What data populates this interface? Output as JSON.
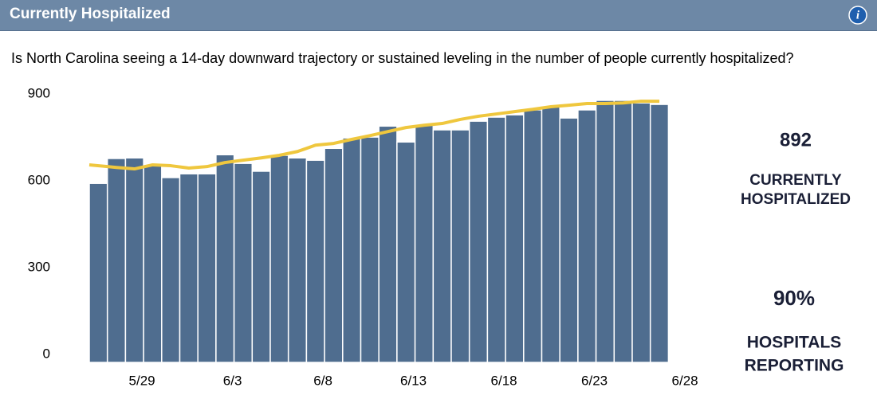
{
  "header": {
    "title": "Currently Hospitalized"
  },
  "question": "Is North Carolina seeing a 14-day downward trajectory or sustained leveling in the number of people currently hospitalized?",
  "chart_data": {
    "type": "bar",
    "categories": [
      null,
      null,
      null,
      "5/29",
      null,
      null,
      null,
      null,
      "6/3",
      null,
      null,
      null,
      null,
      "6/8",
      null,
      null,
      null,
      null,
      "6/13",
      null,
      null,
      null,
      null,
      "6/18",
      null,
      null,
      null,
      null,
      "6/23",
      null,
      null,
      null,
      null,
      "6/28"
    ],
    "series": [
      {
        "type": "bar",
        "color": "#4f6d8f",
        "values": [
          619,
          705,
          707,
          680,
          639,
          652,
          652,
          718,
          688,
          661,
          716,
          707,
          699,
          740,
          776,
          779,
          817,
          762,
          823,
          804,
          804,
          834,
          848,
          856,
          873,
          886,
          845,
          873,
          906,
          906,
          897,
          892,
          null,
          null
        ]
      },
      {
        "type": "line",
        "color": "#efc73e",
        "values": [
          683,
          674,
          669,
          683,
          680,
          672,
          677,
          691,
          699,
          707,
          716,
          729,
          751,
          757,
          771,
          784,
          798,
          812,
          820,
          826,
          840,
          851,
          859,
          867,
          875,
          884,
          889,
          895,
          895,
          897,
          903,
          903,
          null,
          null
        ]
      }
    ],
    "ylim": [
      0,
      950
    ],
    "yticks": [
      0,
      300,
      600,
      900
    ],
    "grid": false
  },
  "stats": [
    {
      "value": "892",
      "label": [
        "CURRENTLY",
        "HOSPITALIZED"
      ]
    },
    {
      "value": "90%",
      "label": [
        "HOSPITALS",
        "REPORTING"
      ]
    }
  ]
}
